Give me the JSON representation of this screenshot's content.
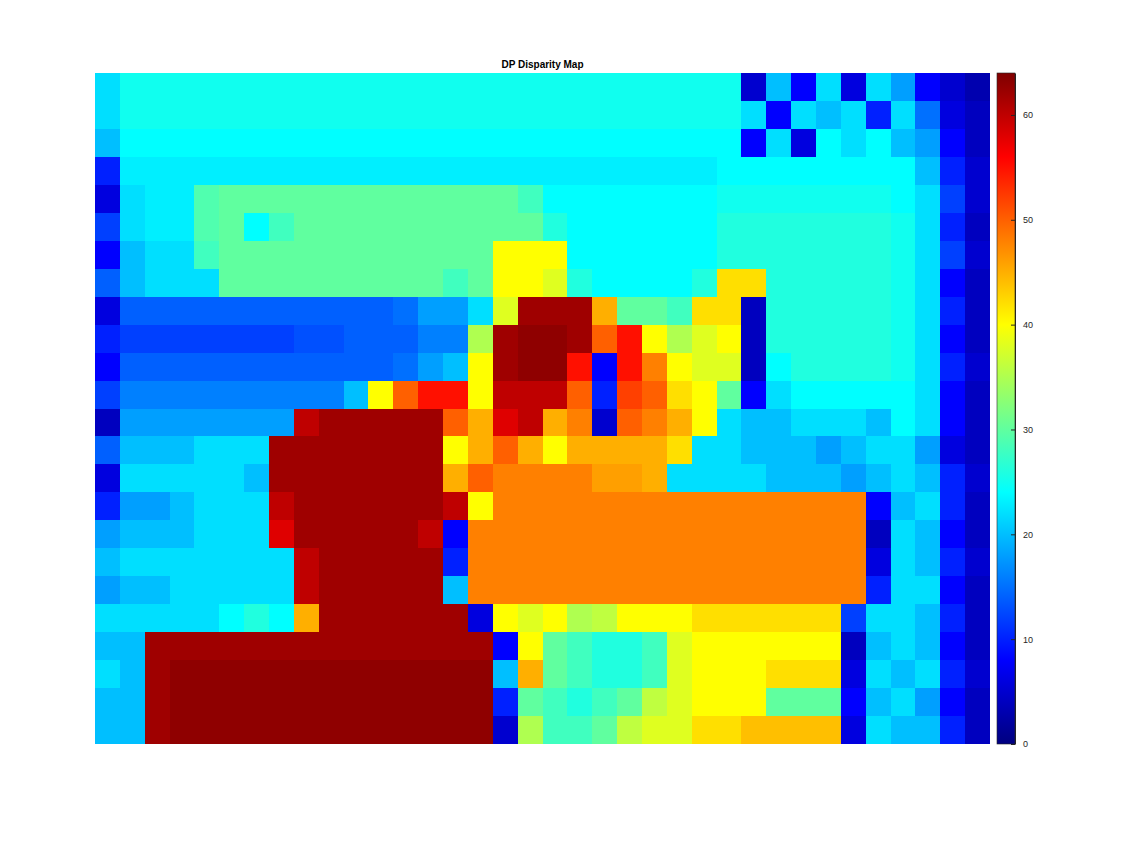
{
  "chart_data": {
    "type": "heatmap",
    "title": "DP Disparity Map",
    "tick_labels": false,
    "colorbar_range": [
      0,
      64
    ],
    "colorbar_ticks": [
      0,
      10,
      20,
      30,
      40,
      50,
      60
    ],
    "z": [
      [
        22,
        25,
        25,
        25,
        25,
        25,
        25,
        25,
        25,
        25,
        25,
        25,
        25,
        25,
        25,
        25,
        25,
        25,
        25,
        25,
        25,
        25,
        25,
        25,
        25,
        25,
        5,
        20,
        8,
        22,
        6,
        22,
        18,
        8,
        5,
        3
      ],
      [
        22,
        25,
        25,
        25,
        25,
        25,
        25,
        25,
        25,
        25,
        25,
        25,
        25,
        25,
        25,
        25,
        25,
        25,
        25,
        25,
        25,
        25,
        25,
        25,
        25,
        25,
        22,
        8,
        22,
        20,
        22,
        10,
        22,
        15,
        6,
        4
      ],
      [
        20,
        24,
        24,
        24,
        24,
        24,
        24,
        24,
        24,
        24,
        24,
        24,
        24,
        24,
        24,
        24,
        24,
        24,
        24,
        24,
        24,
        24,
        24,
        24,
        24,
        24,
        8,
        22,
        6,
        24,
        22,
        24,
        20,
        18,
        8,
        4
      ],
      [
        10,
        23,
        23,
        23,
        23,
        23,
        23,
        23,
        23,
        23,
        23,
        23,
        23,
        23,
        23,
        23,
        23,
        23,
        23,
        23,
        23,
        23,
        23,
        23,
        23,
        24,
        24,
        24,
        24,
        24,
        24,
        24,
        24,
        20,
        10,
        5
      ],
      [
        6,
        22,
        23,
        23,
        29,
        30,
        30,
        30,
        30,
        30,
        30,
        30,
        30,
        30,
        30,
        30,
        30,
        28,
        24,
        24,
        24,
        24,
        24,
        24,
        24,
        25,
        25,
        25,
        25,
        25,
        25,
        25,
        24,
        22,
        12,
        5
      ],
      [
        12,
        22,
        23,
        23,
        29,
        30,
        24,
        28,
        30,
        30,
        30,
        30,
        30,
        30,
        30,
        30,
        30,
        30,
        26,
        24,
        24,
        24,
        24,
        24,
        24,
        26,
        26,
        26,
        26,
        26,
        26,
        26,
        25,
        22,
        10,
        4
      ],
      [
        8,
        20,
        22,
        22,
        28,
        30,
        30,
        30,
        30,
        30,
        30,
        30,
        30,
        30,
        30,
        30,
        40,
        40,
        40,
        24,
        24,
        24,
        24,
        24,
        24,
        26,
        26,
        26,
        26,
        26,
        26,
        26,
        25,
        22,
        12,
        5
      ],
      [
        14,
        20,
        22,
        22,
        22,
        30,
        30,
        30,
        30,
        30,
        30,
        30,
        30,
        30,
        28,
        30,
        40,
        40,
        38,
        26,
        24,
        24,
        24,
        24,
        26,
        42,
        42,
        26,
        26,
        26,
        26,
        26,
        25,
        22,
        8,
        4
      ],
      [
        6,
        14,
        14,
        14,
        14,
        14,
        14,
        14,
        14,
        14,
        14,
        14,
        15,
        18,
        18,
        22,
        38,
        62,
        62,
        62,
        45,
        30,
        30,
        28,
        42,
        42,
        4,
        26,
        26,
        26,
        26,
        26,
        25,
        22,
        10,
        4
      ],
      [
        10,
        12,
        12,
        12,
        12,
        12,
        12,
        12,
        13,
        13,
        14,
        14,
        14,
        16,
        16,
        35,
        62,
        63,
        63,
        62,
        50,
        55,
        40,
        35,
        38,
        40,
        4,
        26,
        26,
        26,
        26,
        26,
        25,
        22,
        8,
        4
      ],
      [
        8,
        14,
        14,
        14,
        14,
        14,
        14,
        14,
        14,
        14,
        14,
        14,
        15,
        18,
        20,
        40,
        62,
        63,
        63,
        55,
        8,
        55,
        48,
        40,
        38,
        38,
        4,
        24,
        26,
        26,
        26,
        26,
        25,
        22,
        10,
        5
      ],
      [
        12,
        16,
        16,
        16,
        16,
        16,
        16,
        16,
        16,
        16,
        20,
        40,
        50,
        55,
        55,
        40,
        60,
        60,
        60,
        50,
        10,
        52,
        50,
        42,
        40,
        30,
        8,
        22,
        24,
        24,
        24,
        24,
        24,
        22,
        8,
        4
      ],
      [
        4,
        18,
        18,
        18,
        18,
        18,
        18,
        18,
        60,
        62,
        62,
        62,
        62,
        62,
        50,
        45,
        58,
        60,
        45,
        48,
        5,
        50,
        48,
        45,
        40,
        22,
        20,
        20,
        22,
        22,
        22,
        20,
        24,
        22,
        8,
        4
      ],
      [
        14,
        20,
        20,
        20,
        22,
        22,
        22,
        62,
        62,
        62,
        62,
        62,
        62,
        62,
        40,
        45,
        50,
        45,
        40,
        45,
        45,
        45,
        45,
        42,
        22,
        22,
        20,
        20,
        20,
        18,
        20,
        22,
        22,
        18,
        6,
        4
      ],
      [
        6,
        22,
        22,
        22,
        22,
        22,
        20,
        62,
        62,
        62,
        62,
        62,
        62,
        62,
        45,
        50,
        48,
        48,
        48,
        48,
        46,
        46,
        45,
        22,
        22,
        22,
        22,
        20,
        20,
        20,
        18,
        20,
        22,
        20,
        10,
        5
      ],
      [
        10,
        18,
        18,
        20,
        22,
        22,
        22,
        60,
        62,
        62,
        62,
        62,
        62,
        62,
        60,
        40,
        48,
        48,
        48,
        48,
        48,
        48,
        48,
        48,
        48,
        48,
        48,
        48,
        48,
        48,
        48,
        8,
        20,
        22,
        10,
        4
      ],
      [
        18,
        20,
        20,
        20,
        22,
        22,
        22,
        58,
        62,
        62,
        62,
        62,
        62,
        60,
        8,
        48,
        48,
        48,
        48,
        48,
        48,
        48,
        48,
        48,
        48,
        48,
        48,
        48,
        48,
        48,
        48,
        4,
        22,
        20,
        8,
        4
      ],
      [
        20,
        22,
        22,
        22,
        22,
        22,
        22,
        22,
        60,
        62,
        62,
        62,
        62,
        62,
        10,
        48,
        48,
        48,
        48,
        48,
        48,
        48,
        48,
        48,
        48,
        48,
        48,
        48,
        48,
        48,
        48,
        6,
        22,
        20,
        10,
        5
      ],
      [
        18,
        20,
        20,
        22,
        22,
        22,
        22,
        22,
        60,
        62,
        62,
        62,
        62,
        62,
        20,
        48,
        48,
        48,
        48,
        48,
        48,
        48,
        48,
        48,
        48,
        48,
        48,
        48,
        48,
        48,
        48,
        10,
        22,
        22,
        8,
        4
      ],
      [
        22,
        22,
        22,
        22,
        22,
        24,
        26,
        24,
        45,
        62,
        62,
        62,
        62,
        62,
        62,
        6,
        40,
        38,
        40,
        35,
        36,
        40,
        40,
        40,
        42,
        42,
        42,
        42,
        42,
        42,
        12,
        22,
        22,
        20,
        10,
        4
      ],
      [
        20,
        20,
        62,
        62,
        62,
        62,
        62,
        62,
        62,
        62,
        62,
        62,
        62,
        62,
        62,
        62,
        8,
        40,
        30,
        28,
        26,
        26,
        28,
        38,
        40,
        40,
        40,
        40,
        40,
        40,
        4,
        20,
        22,
        20,
        8,
        4
      ],
      [
        22,
        20,
        62,
        63,
        63,
        63,
        63,
        63,
        63,
        63,
        63,
        63,
        63,
        63,
        63,
        63,
        20,
        45,
        30,
        28,
        26,
        26,
        28,
        38,
        40,
        40,
        40,
        42,
        42,
        42,
        6,
        22,
        20,
        22,
        10,
        5
      ],
      [
        20,
        20,
        62,
        63,
        63,
        63,
        63,
        63,
        63,
        63,
        63,
        63,
        63,
        63,
        63,
        63,
        10,
        30,
        28,
        26,
        28,
        30,
        36,
        38,
        40,
        40,
        40,
        30,
        30,
        30,
        8,
        20,
        22,
        18,
        8,
        4
      ],
      [
        20,
        20,
        62,
        63,
        63,
        63,
        63,
        63,
        63,
        63,
        63,
        63,
        63,
        63,
        63,
        63,
        5,
        35,
        28,
        28,
        30,
        36,
        38,
        38,
        42,
        42,
        44,
        44,
        44,
        44,
        6,
        22,
        20,
        20,
        10,
        4
      ]
    ]
  }
}
